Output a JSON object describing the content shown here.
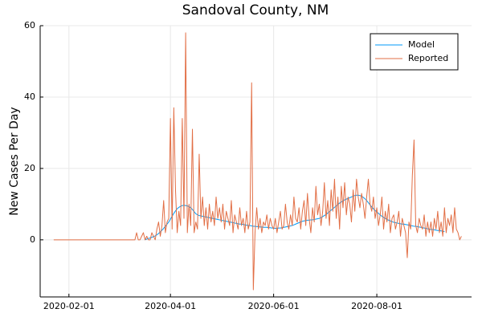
{
  "chart_data": {
    "type": "line",
    "title": "Sandoval County, NM",
    "y_label": "New Cases Per Day",
    "x": [
      "2020-01-23",
      "2020-01-24",
      "2020-01-25",
      "2020-01-26",
      "2020-01-27",
      "2020-01-28",
      "2020-01-29",
      "2020-01-30",
      "2020-01-31",
      "2020-02-01",
      "2020-02-02",
      "2020-02-03",
      "2020-02-04",
      "2020-02-05",
      "2020-02-06",
      "2020-02-07",
      "2020-02-08",
      "2020-02-09",
      "2020-02-10",
      "2020-02-11",
      "2020-02-12",
      "2020-02-13",
      "2020-02-14",
      "2020-02-15",
      "2020-02-16",
      "2020-02-17",
      "2020-02-18",
      "2020-02-19",
      "2020-02-20",
      "2020-02-21",
      "2020-02-22",
      "2020-02-23",
      "2020-02-24",
      "2020-02-25",
      "2020-02-26",
      "2020-02-27",
      "2020-02-28",
      "2020-02-29",
      "2020-03-01",
      "2020-03-02",
      "2020-03-03",
      "2020-03-04",
      "2020-03-05",
      "2020-03-06",
      "2020-03-07",
      "2020-03-08",
      "2020-03-09",
      "2020-03-10",
      "2020-03-11",
      "2020-03-12",
      "2020-03-13",
      "2020-03-14",
      "2020-03-15",
      "2020-03-16",
      "2020-03-17",
      "2020-03-18",
      "2020-03-19",
      "2020-03-20",
      "2020-03-21",
      "2020-03-22",
      "2020-03-23",
      "2020-03-24",
      "2020-03-25",
      "2020-03-26",
      "2020-03-27",
      "2020-03-28",
      "2020-03-29",
      "2020-03-30",
      "2020-03-31",
      "2020-04-01",
      "2020-04-02",
      "2020-04-03",
      "2020-04-04",
      "2020-04-05",
      "2020-04-06",
      "2020-04-07",
      "2020-04-08",
      "2020-04-09",
      "2020-04-10",
      "2020-04-11",
      "2020-04-12",
      "2020-04-13",
      "2020-04-14",
      "2020-04-15",
      "2020-04-16",
      "2020-04-17",
      "2020-04-18",
      "2020-04-19",
      "2020-04-20",
      "2020-04-21",
      "2020-04-22",
      "2020-04-23",
      "2020-04-24",
      "2020-04-25",
      "2020-04-26",
      "2020-04-27",
      "2020-04-28",
      "2020-04-29",
      "2020-04-30",
      "2020-05-01",
      "2020-05-02",
      "2020-05-03",
      "2020-05-04",
      "2020-05-05",
      "2020-05-06",
      "2020-05-07",
      "2020-05-08",
      "2020-05-09",
      "2020-05-10",
      "2020-05-11",
      "2020-05-12",
      "2020-05-13",
      "2020-05-14",
      "2020-05-15",
      "2020-05-16",
      "2020-05-17",
      "2020-05-18",
      "2020-05-19",
      "2020-05-20",
      "2020-05-21",
      "2020-05-22",
      "2020-05-23",
      "2020-05-24",
      "2020-05-25",
      "2020-05-26",
      "2020-05-27",
      "2020-05-28",
      "2020-05-29",
      "2020-05-30",
      "2020-05-31",
      "2020-06-01",
      "2020-06-02",
      "2020-06-03",
      "2020-06-04",
      "2020-06-05",
      "2020-06-06",
      "2020-06-07",
      "2020-06-08",
      "2020-06-09",
      "2020-06-10",
      "2020-06-11",
      "2020-06-12",
      "2020-06-13",
      "2020-06-14",
      "2020-06-15",
      "2020-06-16",
      "2020-06-17",
      "2020-06-18",
      "2020-06-19",
      "2020-06-20",
      "2020-06-21",
      "2020-06-22",
      "2020-06-23",
      "2020-06-24",
      "2020-06-25",
      "2020-06-26",
      "2020-06-27",
      "2020-06-28",
      "2020-06-29",
      "2020-06-30",
      "2020-07-01",
      "2020-07-02",
      "2020-07-03",
      "2020-07-04",
      "2020-07-05",
      "2020-07-06",
      "2020-07-07",
      "2020-07-08",
      "2020-07-09",
      "2020-07-10",
      "2020-07-11",
      "2020-07-12",
      "2020-07-13",
      "2020-07-14",
      "2020-07-15",
      "2020-07-16",
      "2020-07-17",
      "2020-07-18",
      "2020-07-19",
      "2020-07-20",
      "2020-07-21",
      "2020-07-22",
      "2020-07-23",
      "2020-07-24",
      "2020-07-25",
      "2020-07-26",
      "2020-07-27",
      "2020-07-28",
      "2020-07-29",
      "2020-07-30",
      "2020-07-31",
      "2020-08-01",
      "2020-08-02",
      "2020-08-03",
      "2020-08-04",
      "2020-08-05",
      "2020-08-06",
      "2020-08-07",
      "2020-08-08",
      "2020-08-09",
      "2020-08-10",
      "2020-08-11",
      "2020-08-12",
      "2020-08-13",
      "2020-08-14",
      "2020-08-15",
      "2020-08-16",
      "2020-08-17",
      "2020-08-18",
      "2020-08-19",
      "2020-08-20",
      "2020-08-21",
      "2020-08-22",
      "2020-08-23",
      "2020-08-24",
      "2020-08-25",
      "2020-08-26",
      "2020-08-27",
      "2020-08-28",
      "2020-08-29",
      "2020-08-30",
      "2020-08-31",
      "2020-09-01",
      "2020-09-02",
      "2020-09-03",
      "2020-09-04",
      "2020-09-05",
      "2020-09-06",
      "2020-09-07",
      "2020-09-08",
      "2020-09-09",
      "2020-09-10",
      "2020-09-11",
      "2020-09-12",
      "2020-09-13",
      "2020-09-14",
      "2020-09-15",
      "2020-09-16",
      "2020-09-17",
      "2020-09-18",
      "2020-09-19",
      "2020-09-20"
    ],
    "series": [
      {
        "name": "Model",
        "color": "#009af9",
        "values": [
          null,
          null,
          null,
          null,
          null,
          null,
          null,
          null,
          null,
          null,
          null,
          null,
          null,
          null,
          null,
          null,
          null,
          null,
          null,
          null,
          null,
          null,
          null,
          null,
          null,
          null,
          null,
          null,
          null,
          null,
          null,
          null,
          null,
          null,
          null,
          null,
          null,
          null,
          null,
          null,
          null,
          null,
          null,
          null,
          null,
          null,
          null,
          null,
          null,
          null,
          null,
          null,
          null,
          null,
          0,
          0.2,
          0.4,
          0.5,
          0.7,
          0.9,
          1.1,
          1.4,
          1.8,
          2.2,
          2.7,
          3.2,
          3.8,
          4.4,
          5,
          5.8,
          6.6,
          7.4,
          8.1,
          8.7,
          9.1,
          9.4,
          9.6,
          9.7,
          9.6,
          9.5,
          9.3,
          9.0,
          8.5,
          7.9,
          7.3,
          7.0,
          6.8,
          6.7,
          6.6,
          6.5,
          6.4,
          6.3,
          6.2,
          6.1,
          6.0,
          5.9,
          5.8,
          5.7,
          5.6,
          5.5,
          5.4,
          5.3,
          5.2,
          5.1,
          5.0,
          4.9,
          4.8,
          4.7,
          4.6,
          4.5,
          4.4,
          4.4,
          4.3,
          4.2,
          4.1,
          4.0,
          4.0,
          3.9,
          3.8,
          3.8,
          3.7,
          3.7,
          3.6,
          3.6,
          3.5,
          3.5,
          3.5,
          3.4,
          3.4,
          3.3,
          3.3,
          3.2,
          3.2,
          3.3,
          3.3,
          3.4,
          3.5,
          3.6,
          3.7,
          3.8,
          3.9,
          4.0,
          4.2,
          4.4,
          4.6,
          4.8,
          5.0,
          5.2,
          5.3,
          5.4,
          5.5,
          5.5,
          5.6,
          5.6,
          5.7,
          5.8,
          5.9,
          6.0,
          6.2,
          6.5,
          6.8,
          7.1,
          7.5,
          7.9,
          8.3,
          8.7,
          9.1,
          9.5,
          9.9,
          10.3,
          10.6,
          10.9,
          11.2,
          11.4,
          11.6,
          11.8,
          12.0,
          12.2,
          12.4,
          12.5,
          12.5,
          12.4,
          12.2,
          11.9,
          11.5,
          11.0,
          10.4,
          9.8,
          9.2,
          8.7,
          8.2,
          7.8,
          7.4,
          7.0,
          6.6,
          6.3,
          6.0,
          5.7,
          5.5,
          5.3,
          5.1,
          4.9,
          4.8,
          4.7,
          4.6,
          4.5,
          4.4,
          4.4,
          4.3,
          4.2,
          4.1,
          4.0,
          3.9,
          3.8,
          3.8,
          3.7,
          3.6,
          3.5,
          3.4,
          3.3,
          3.2,
          3.1,
          3.0,
          2.9,
          2.9,
          2.8,
          2.7,
          2.6,
          2.6,
          2.5,
          2.4,
          2.3,
          null,
          null,
          null,
          null,
          null,
          null,
          null,
          null,
          null,
          null
        ]
      },
      {
        "name": "Reported",
        "color": "#e26f46",
        "values": [
          0,
          0,
          0,
          0,
          0,
          0,
          0,
          0,
          0,
          0,
          0,
          0,
          0,
          0,
          0,
          0,
          0,
          0,
          0,
          0,
          0,
          0,
          0,
          0,
          0,
          0,
          0,
          0,
          0,
          0,
          0,
          0,
          0,
          0,
          0,
          0,
          0,
          0,
          0,
          0,
          0,
          0,
          0,
          0,
          0,
          0,
          0,
          0,
          0,
          2,
          0,
          0,
          1,
          2,
          0,
          1,
          0,
          0,
          2,
          1,
          0,
          3,
          5,
          1,
          4,
          11,
          2,
          5,
          6,
          34,
          3,
          37,
          14,
          2,
          8,
          4,
          34,
          6,
          58,
          2,
          10,
          4,
          31,
          2,
          5,
          3,
          24,
          6,
          12,
          4,
          9,
          3,
          10,
          5,
          8,
          4,
          12,
          6,
          9,
          5,
          10,
          3,
          8,
          6,
          4,
          11,
          2,
          7,
          5,
          3,
          9,
          4,
          6,
          2,
          8,
          3,
          5,
          44,
          -14,
          2,
          9,
          3,
          6,
          2,
          5,
          4,
          7,
          3,
          6,
          4,
          3,
          6,
          2,
          5,
          8,
          3,
          4,
          10,
          5,
          3,
          7,
          4,
          12,
          6,
          5,
          9,
          3,
          8,
          11,
          4,
          13,
          6,
          2,
          9,
          5,
          15,
          7,
          10,
          4,
          8,
          16,
          6,
          11,
          4,
          14,
          8,
          17,
          6,
          12,
          3,
          15,
          9,
          16,
          7,
          12,
          10,
          5,
          14,
          8,
          17,
          12,
          9,
          13,
          10,
          6,
          12,
          17,
          10,
          8,
          12,
          6,
          9,
          4,
          7,
          12,
          3,
          8,
          5,
          10,
          2,
          6,
          7,
          3,
          5,
          8,
          1,
          6,
          4,
          2,
          -5,
          5,
          3,
          18,
          28,
          4,
          2,
          6,
          4,
          3,
          7,
          1,
          5,
          2,
          5,
          1,
          6,
          3,
          8,
          2,
          5,
          1,
          9,
          2,
          6,
          4,
          7,
          2,
          9,
          3,
          2,
          0,
          1
        ]
      }
    ],
    "xlim": [
      "2020-01-15",
      "2020-09-26"
    ],
    "xticks": [
      "2020-02-01",
      "2020-04-01",
      "2020-06-01",
      "2020-08-01"
    ],
    "ylim": [
      -16,
      60
    ],
    "yticks": [
      0,
      20,
      40,
      60
    ],
    "grid": true,
    "legend": "top right"
  }
}
